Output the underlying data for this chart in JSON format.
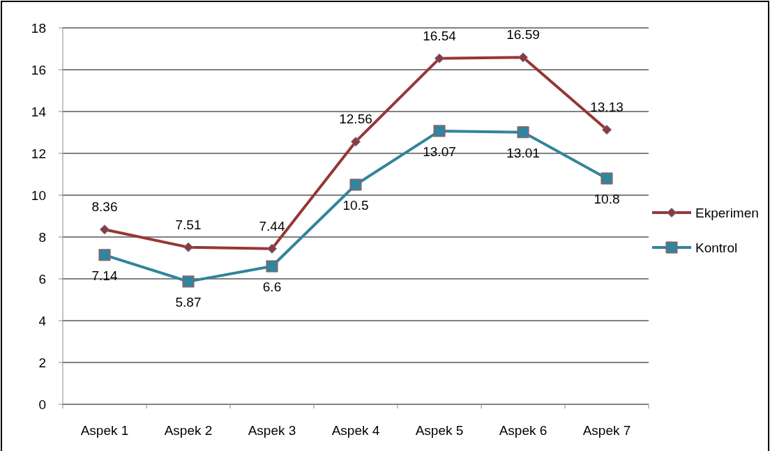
{
  "chart_data": {
    "type": "line",
    "categories": [
      "Aspek 1",
      "Aspek 2",
      "Aspek 3",
      "Aspek 4",
      "Aspek 5",
      "Aspek 6",
      "Aspek 7"
    ],
    "series": [
      {
        "name": "Ekperimen",
        "color": "#953735",
        "marker": "diamond",
        "values": [
          8.36,
          7.51,
          7.44,
          12.56,
          16.54,
          16.59,
          13.13
        ]
      },
      {
        "name": "Kontrol",
        "color": "#31859c",
        "marker": "square",
        "values": [
          7.14,
          5.87,
          6.6,
          10.5,
          13.07,
          13.01,
          10.8
        ]
      }
    ],
    "ylim": [
      0,
      18
    ],
    "yticks": [
      0,
      2,
      4,
      6,
      8,
      10,
      12,
      14,
      16,
      18
    ],
    "grid": "y",
    "legend": "right",
    "data_labels": true
  }
}
